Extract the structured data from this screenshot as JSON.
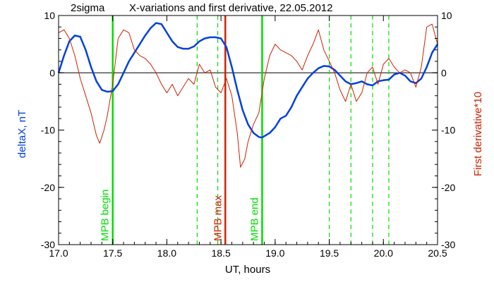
{
  "chart_data": {
    "type": "line",
    "title_left": "2sigma",
    "title": "X-variations and first derivative, 22.05.2012",
    "xlabel": "UT, hours",
    "ylabel_left": "deltaX, nT",
    "ylabel_right": "First derivative*10",
    "xlim": [
      17.0,
      20.5
    ],
    "ylim": [
      -30,
      10
    ],
    "x_ticks": [
      17.0,
      17.5,
      18.0,
      18.5,
      19.0,
      19.5,
      20.0,
      20.5
    ],
    "x_tick_labels": [
      "17.0",
      "17.5",
      "18.0",
      "18.5",
      "19.0",
      "19.5",
      "20.0",
      "20.5"
    ],
    "y_ticks": [
      10,
      0,
      -10,
      -20,
      -30
    ],
    "y_tick_labels": [
      "10",
      "0",
      "-10",
      "-20",
      "-30"
    ],
    "zero_line": true,
    "series": [
      {
        "name": "deltaX",
        "color": "#0040e0",
        "x": [
          17.0,
          17.05,
          17.1,
          17.15,
          17.2,
          17.25,
          17.3,
          17.35,
          17.4,
          17.45,
          17.5,
          17.55,
          17.6,
          17.65,
          17.7,
          17.75,
          17.8,
          17.85,
          17.9,
          17.95,
          18.0,
          18.05,
          18.1,
          18.15,
          18.2,
          18.25,
          18.3,
          18.35,
          18.4,
          18.45,
          18.5,
          18.55,
          18.6,
          18.65,
          18.7,
          18.75,
          18.8,
          18.85,
          18.88,
          18.95,
          19.0,
          19.05,
          19.1,
          19.15,
          19.2,
          19.25,
          19.3,
          19.35,
          19.4,
          19.45,
          19.5,
          19.55,
          19.6,
          19.65,
          19.7,
          19.75,
          19.8,
          19.85,
          19.9,
          19.95,
          20.0,
          20.05,
          20.1,
          20.15,
          20.2,
          20.25,
          20.3,
          20.35,
          20.4,
          20.45,
          20.5
        ],
        "values": [
          0.0,
          3.0,
          5.5,
          6.5,
          6.3,
          4.0,
          1.0,
          -1.5,
          -3.0,
          -3.3,
          -3.2,
          -2.0,
          0.0,
          2.0,
          3.5,
          5.0,
          6.5,
          7.8,
          8.7,
          8.5,
          7.0,
          5.5,
          4.5,
          4.2,
          4.2,
          4.6,
          5.5,
          6.0,
          6.2,
          6.2,
          6.0,
          4.5,
          1.0,
          -3.0,
          -6.5,
          -9.0,
          -10.5,
          -11.2,
          -11.3,
          -10.5,
          -9.5,
          -8.0,
          -7.5,
          -6.0,
          -4.0,
          -2.5,
          -1.0,
          0.0,
          0.8,
          1.2,
          1.1,
          0.5,
          -0.5,
          -1.5,
          -2.0,
          -1.8,
          -1.5,
          -2.0,
          -2.2,
          -1.5,
          -1.3,
          -1.2,
          -0.3,
          0.0,
          -0.5,
          -1.5,
          -1.8,
          -1.0,
          1.0,
          3.5,
          5.0
        ]
      },
      {
        "name": "First derivative*10",
        "color": "#cc2200",
        "x": [
          17.0,
          17.05,
          17.1,
          17.15,
          17.2,
          17.25,
          17.3,
          17.35,
          17.38,
          17.42,
          17.45,
          17.5,
          17.55,
          17.6,
          17.65,
          17.7,
          17.75,
          17.8,
          17.85,
          17.9,
          17.95,
          18.0,
          18.05,
          18.1,
          18.15,
          18.2,
          18.25,
          18.3,
          18.35,
          18.4,
          18.45,
          18.5,
          18.55,
          18.6,
          18.65,
          18.68,
          18.72,
          18.75,
          18.8,
          18.85,
          18.9,
          18.95,
          19.0,
          19.05,
          19.1,
          19.15,
          19.2,
          19.25,
          19.3,
          19.35,
          19.4,
          19.45,
          19.5,
          19.55,
          19.6,
          19.65,
          19.7,
          19.75,
          19.8,
          19.85,
          19.9,
          19.95,
          20.0,
          20.05,
          20.1,
          20.15,
          20.2,
          20.25,
          20.3,
          20.35,
          20.4,
          20.45,
          20.5
        ],
        "values": [
          7.0,
          7.5,
          6.0,
          3.0,
          -1.0,
          -4.0,
          -7.0,
          -11.0,
          -12.3,
          -10.0,
          -7.5,
          -2.0,
          6.0,
          7.5,
          7.0,
          4.0,
          3.0,
          2.5,
          1.5,
          0.0,
          -2.0,
          -3.5,
          -2.0,
          -4.0,
          -2.5,
          -1.0,
          -2.0,
          1.5,
          0.0,
          0.5,
          -2.5,
          -3.5,
          -1.0,
          -4.0,
          -10.5,
          -16.5,
          -15.0,
          -12.0,
          -9.0,
          -7.0,
          -1.0,
          3.0,
          5.0,
          4.0,
          3.5,
          3.0,
          2.0,
          0.5,
          3.0,
          5.0,
          7.5,
          4.0,
          2.0,
          0.0,
          -3.0,
          -5.0,
          -2.0,
          -5.0,
          -3.5,
          0.0,
          1.0,
          -2.0,
          1.5,
          2.5,
          1.0,
          0.0,
          0.5,
          0.0,
          -2.5,
          1.0,
          8.0,
          8.5,
          5.0
        ]
      }
    ],
    "markers": [
      {
        "x": 17.5,
        "color": "#00dd00",
        "style": "solid",
        "label": "MPB begin"
      },
      {
        "x": 18.28,
        "color": "#00dd00",
        "style": "dashed"
      },
      {
        "x": 18.47,
        "color": "#00dd00",
        "style": "dashed"
      },
      {
        "x": 18.54,
        "color": "#cc2200",
        "style": "solid",
        "label": "MPB max"
      },
      {
        "x": 18.88,
        "color": "#00dd00",
        "style": "solid",
        "label": "MPB end"
      },
      {
        "x": 19.5,
        "color": "#00dd00",
        "style": "dashed"
      },
      {
        "x": 19.7,
        "color": "#00dd00",
        "style": "dashed"
      },
      {
        "x": 19.9,
        "color": "#00dd00",
        "style": "dashed"
      },
      {
        "x": 20.05,
        "color": "#00dd00",
        "style": "dashed"
      }
    ],
    "grid": false,
    "legend": "none"
  }
}
